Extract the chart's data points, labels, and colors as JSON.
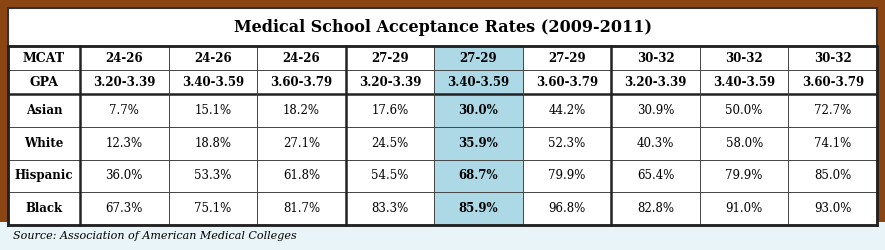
{
  "title": "Medical School Acceptance Rates (2009-2011)",
  "source": "Source: Association of American Medical Colleges",
  "mcat_row": [
    "MCAT",
    "24-26",
    "24-26",
    "24-26",
    "27-29",
    "27-29",
    "27-29",
    "30-32",
    "30-32",
    "30-32"
  ],
  "gpa_row": [
    "GPA",
    "3.20-3.39",
    "3.40-3.59",
    "3.60-3.79",
    "3.20-3.39",
    "3.40-3.59",
    "3.60-3.79",
    "3.20-3.39",
    "3.40-3.59",
    "3.60-3.79"
  ],
  "data_rows": [
    [
      "Asian",
      "7.7%",
      "15.1%",
      "18.2%",
      "17.6%",
      "30.0%",
      "44.2%",
      "30.9%",
      "50.0%",
      "72.7%"
    ],
    [
      "White",
      "12.3%",
      "18.8%",
      "27.1%",
      "24.5%",
      "35.9%",
      "52.3%",
      "40.3%",
      "58.0%",
      "74.1%"
    ],
    [
      "Hispanic",
      "36.0%",
      "53.3%",
      "61.8%",
      "54.5%",
      "68.7%",
      "79.9%",
      "65.4%",
      "79.9%",
      "85.0%"
    ],
    [
      "Black",
      "67.3%",
      "75.1%",
      "81.7%",
      "83.3%",
      "85.9%",
      "96.8%",
      "82.8%",
      "91.0%",
      "93.0%"
    ]
  ],
  "highlight_col": 5,
  "highlight_bg": "#add8e6",
  "outer_border_color": "#8B4513",
  "cell_bg": "#ffffff",
  "title_fontsize": 11.5,
  "cell_fontsize": 8.5,
  "source_fontsize": 8,
  "border_color": "#444444"
}
